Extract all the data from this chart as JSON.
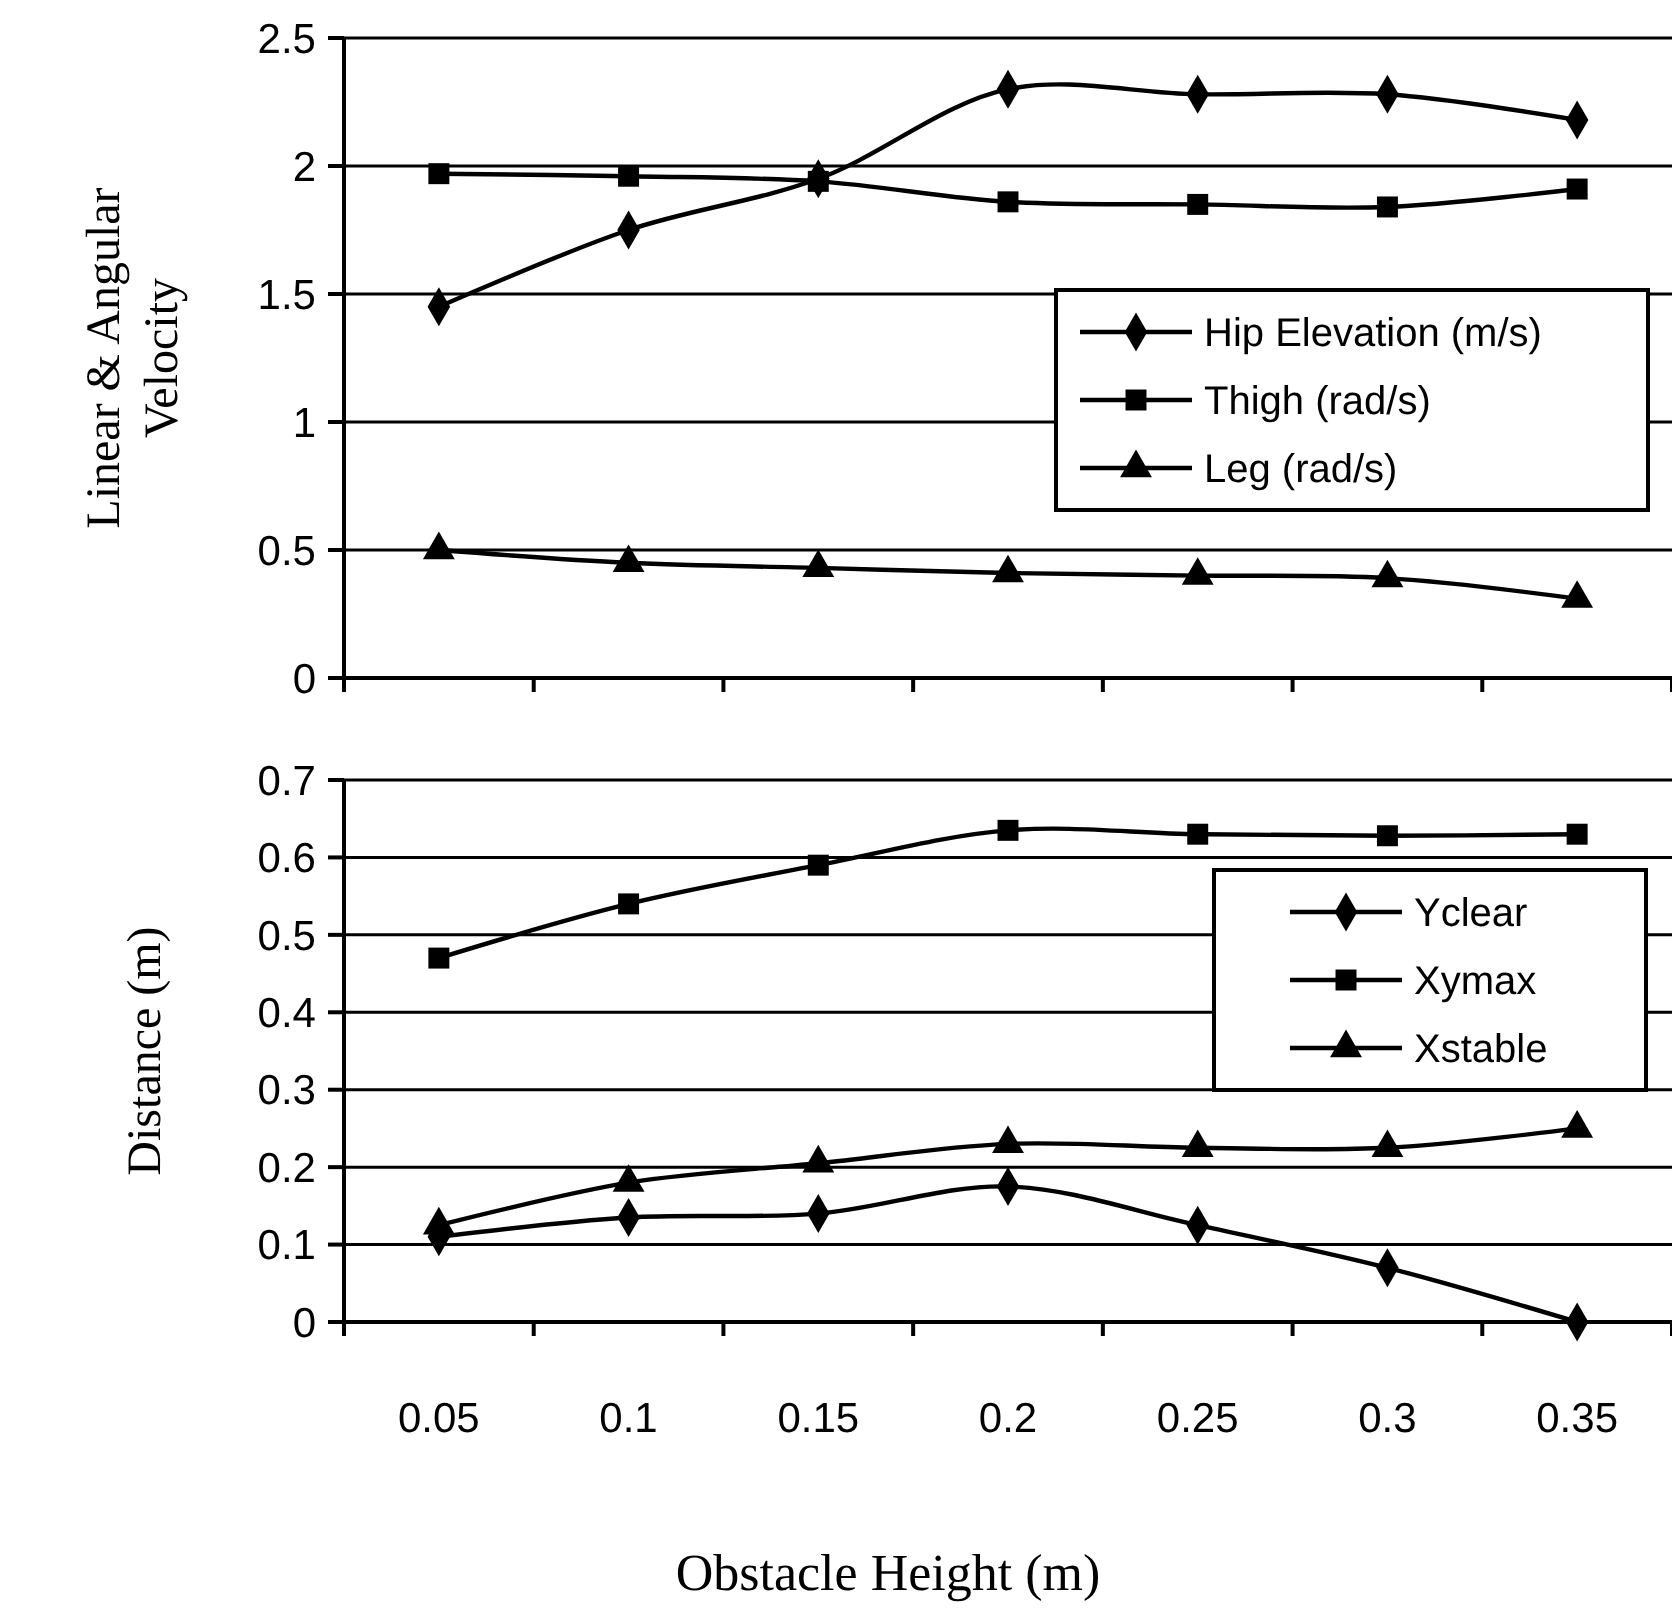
{
  "chart_data": [
    {
      "type": "line",
      "ylabel": "Linear & Angular Velocity",
      "categories": [
        null,
        null,
        null,
        null,
        null,
        null,
        null
      ],
      "ylim": [
        0,
        2.5
      ],
      "yticks": [
        0,
        0.5,
        1,
        1.5,
        2,
        2.5
      ],
      "grid": "y",
      "legend": "right",
      "tick_labels": "y",
      "series": [
        {
          "name": "Hip Elevation (m/s)",
          "color": "#000000",
          "marker": "diamond",
          "values": [
            1.45,
            1.75,
            1.95,
            2.3,
            2.28,
            2.28,
            2.18
          ]
        },
        {
          "name": "Thigh (rad/s)",
          "color": "#000000",
          "marker": "square",
          "values": [
            1.97,
            1.96,
            1.94,
            1.86,
            1.85,
            1.84,
            1.91
          ]
        },
        {
          "name": "Leg (rad/s)",
          "color": "#000000",
          "marker": "triangle",
          "values": [
            0.5,
            0.45,
            0.43,
            0.41,
            0.4,
            0.39,
            0.31
          ]
        }
      ]
    },
    {
      "type": "line",
      "ylabel": "Distance (m)",
      "xlabel": "Obstacle Height (m)",
      "categories": [
        "0.05",
        "0.1",
        "0.15",
        "0.2",
        "0.25",
        "0.3",
        "0.35"
      ],
      "ylim": [
        0,
        0.7
      ],
      "yticks": [
        0,
        0.1,
        0.2,
        0.3,
        0.4,
        0.5,
        0.6,
        0.7
      ],
      "grid": "y",
      "legend": "right",
      "series": [
        {
          "name": "Yclear",
          "color": "#000000",
          "marker": "diamond",
          "values": [
            0.11,
            0.135,
            0.14,
            0.175,
            0.125,
            0.07,
            0
          ]
        },
        {
          "name": "Xymax",
          "color": "#000000",
          "marker": "square",
          "values": [
            0.47,
            0.54,
            0.59,
            0.635,
            0.63,
            0.628,
            0.63
          ]
        },
        {
          "name": "Xstable",
          "color": "#000000",
          "marker": "triangle",
          "values": [
            0.125,
            0.18,
            0.205,
            0.23,
            0.225,
            0.225,
            0.25
          ]
        }
      ]
    }
  ]
}
